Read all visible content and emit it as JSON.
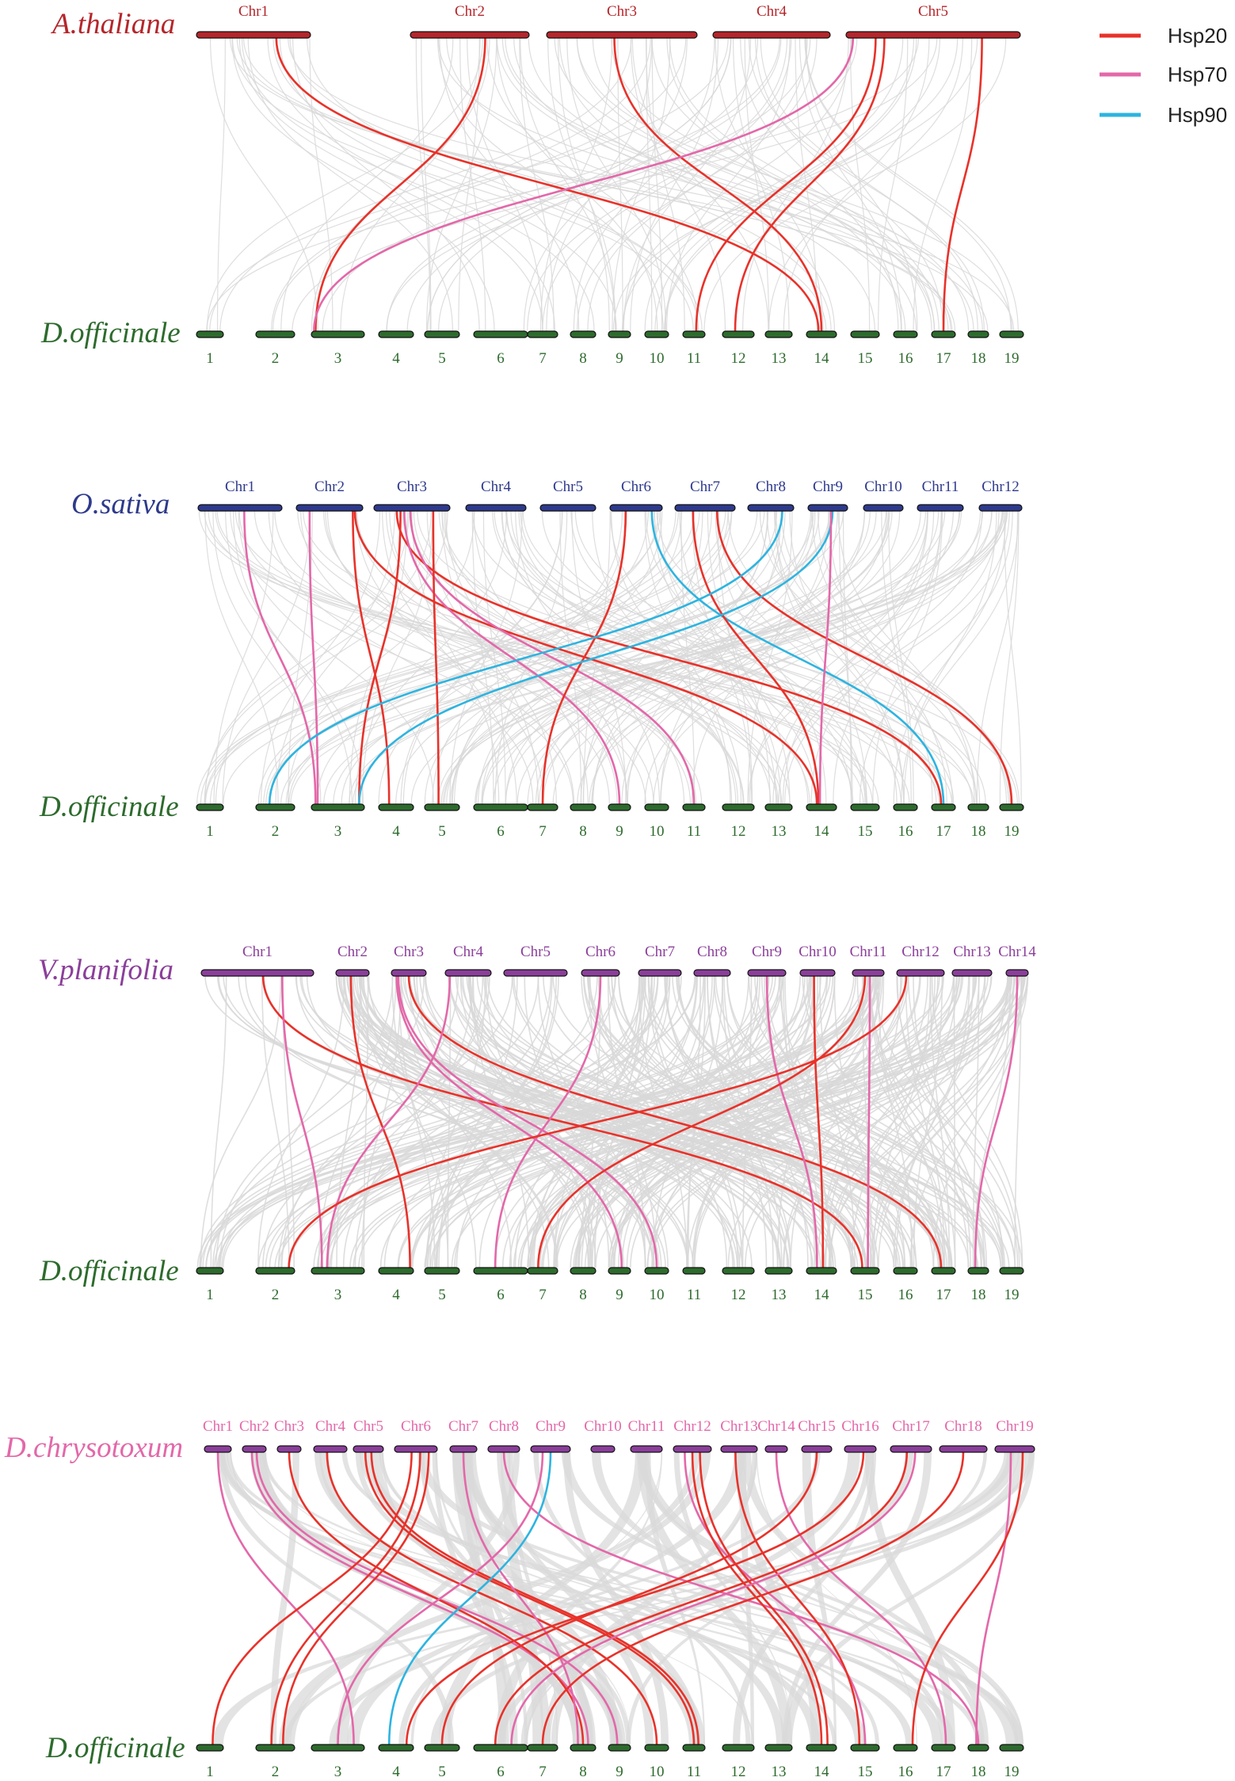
{
  "colors": {
    "Hsp20": "#e8322a",
    "Hsp70": "#e368a9",
    "Hsp90": "#2db4e0",
    "background_links": "#d8d8d8",
    "dof_bar": "#2d6b2d",
    "dof_text": "#2d6b2d"
  },
  "legend": [
    {
      "name": "Hsp20",
      "color_key": "Hsp20"
    },
    {
      "name": "Hsp70",
      "color_key": "Hsp70"
    },
    {
      "name": "Hsp90",
      "color_key": "Hsp90"
    }
  ],
  "panels": [
    {
      "id": "athaliana",
      "top_species": "A.thaliana",
      "bottom_species": "D.officinale",
      "top_color": "#b5262b",
      "top_bar_color": "#b5262b",
      "top_chromosomes": [
        "Chr1",
        "Chr2",
        "Chr3",
        "Chr4",
        "Chr5"
      ],
      "bottom_chromosomes": [
        "1",
        "2",
        "3",
        "4",
        "5",
        "6",
        "7",
        "8",
        "9",
        "10",
        "11",
        "12",
        "13",
        "14",
        "15",
        "16",
        "17",
        "18",
        "19"
      ],
      "gray_density": "light",
      "links": [
        {
          "type": "Hsp20",
          "from": 0,
          "fpos": 0.7,
          "to": 13,
          "tpos": 0.4
        },
        {
          "type": "Hsp20",
          "from": 1,
          "fpos": 0.63,
          "to": 2,
          "tpos": 0.08
        },
        {
          "type": "Hsp20",
          "from": 2,
          "fpos": 0.45,
          "to": 13,
          "tpos": 0.5
        },
        {
          "type": "Hsp20",
          "from": 4,
          "fpos": 0.17,
          "to": 10,
          "tpos": 0.6
        },
        {
          "type": "Hsp20",
          "from": 4,
          "fpos": 0.22,
          "to": 11,
          "tpos": 0.4
        },
        {
          "type": "Hsp20",
          "from": 4,
          "fpos": 0.78,
          "to": 16,
          "tpos": 0.5
        },
        {
          "type": "Hsp70",
          "from": 4,
          "fpos": 0.04,
          "to": 2,
          "tpos": 0.05
        }
      ]
    },
    {
      "id": "osativa",
      "top_species": "O.sativa",
      "bottom_species": "D.officinale",
      "top_color": "#2e3a8c",
      "top_bar_color": "#2e3a8c",
      "top_chromosomes": [
        "Chr1",
        "Chr2",
        "Chr3",
        "Chr4",
        "Chr5",
        "Chr6",
        "Chr7",
        "Chr8",
        "Chr9",
        "Chr10",
        "Chr11",
        "Chr12"
      ],
      "bottom_chromosomes": [
        "1",
        "2",
        "3",
        "4",
        "5",
        "6",
        "7",
        "8",
        "9",
        "10",
        "11",
        "12",
        "13",
        "14",
        "15",
        "16",
        "17",
        "18",
        "19"
      ],
      "gray_density": "medium",
      "links": [
        {
          "type": "Hsp70",
          "from": 0,
          "fpos": 0.55,
          "to": 2,
          "tpos": 0.08
        },
        {
          "type": "Hsp70",
          "from": 1,
          "fpos": 0.2,
          "to": 2,
          "tpos": 0.12
        },
        {
          "type": "Hsp20",
          "from": 1,
          "fpos": 0.85,
          "to": 3,
          "tpos": 0.3
        },
        {
          "type": "Hsp20",
          "from": 1,
          "fpos": 0.88,
          "to": 13,
          "tpos": 0.35
        },
        {
          "type": "Hsp20",
          "from": 2,
          "fpos": 0.35,
          "to": 2,
          "tpos": 0.9
        },
        {
          "type": "Hsp20",
          "from": 2,
          "fpos": 0.3,
          "to": 16,
          "tpos": 0.4
        },
        {
          "type": "Hsp70",
          "from": 2,
          "fpos": 0.4,
          "to": 8,
          "tpos": 0.5
        },
        {
          "type": "Hsp70",
          "from": 2,
          "fpos": 0.48,
          "to": 10,
          "tpos": 0.5
        },
        {
          "type": "Hsp20",
          "from": 2,
          "fpos": 0.78,
          "to": 4,
          "tpos": 0.4
        },
        {
          "type": "Hsp20",
          "from": 5,
          "fpos": 0.3,
          "to": 6,
          "tpos": 0.5
        },
        {
          "type": "Hsp90",
          "from": 5,
          "fpos": 0.8,
          "to": 16,
          "tpos": 0.5
        },
        {
          "type": "Hsp20",
          "from": 6,
          "fpos": 0.3,
          "to": 13,
          "tpos": 0.4
        },
        {
          "type": "Hsp20",
          "from": 6,
          "fpos": 0.7,
          "to": 18,
          "tpos": 0.5
        },
        {
          "type": "Hsp90",
          "from": 7,
          "fpos": 0.75,
          "to": 1,
          "tpos": 0.35
        },
        {
          "type": "Hsp90",
          "from": 8,
          "fpos": 0.62,
          "to": 2,
          "tpos": 0.9
        },
        {
          "type": "Hsp70",
          "from": 8,
          "fpos": 0.58,
          "to": 13,
          "tpos": 0.45
        }
      ]
    },
    {
      "id": "vplanifolia",
      "top_species": "V.planifolia",
      "bottom_species": "D.officinale",
      "top_color": "#8b3f9a",
      "top_bar_color": "#8b3f9a",
      "top_chromosomes": [
        "Chr1",
        "Chr2",
        "Chr3",
        "Chr4",
        "Chr5",
        "Chr6",
        "Chr7",
        "Chr8",
        "Chr9",
        "Chr10",
        "Chr11",
        "Chr12",
        "Chr13",
        "Chr14"
      ],
      "bottom_chromosomes": [
        "1",
        "2",
        "3",
        "4",
        "5",
        "6",
        "7",
        "8",
        "9",
        "10",
        "11",
        "12",
        "13",
        "14",
        "15",
        "16",
        "17",
        "18",
        "19"
      ],
      "gray_density": "heavy",
      "links": [
        {
          "type": "Hsp20",
          "from": 0,
          "fpos": 0.55,
          "to": 14,
          "tpos": 0.4
        },
        {
          "type": "Hsp70",
          "from": 0,
          "fpos": 0.72,
          "to": 2,
          "tpos": 0.2
        },
        {
          "type": "Hsp20",
          "from": 1,
          "fpos": 0.45,
          "to": 3,
          "tpos": 0.9
        },
        {
          "type": "Hsp70",
          "from": 2,
          "fpos": 0.15,
          "to": 8,
          "tpos": 0.6
        },
        {
          "type": "Hsp70",
          "from": 2,
          "fpos": 0.2,
          "to": 9,
          "tpos": 0.5
        },
        {
          "type": "Hsp20",
          "from": 2,
          "fpos": 0.5,
          "to": 16,
          "tpos": 0.4
        },
        {
          "type": "Hsp70",
          "from": 3,
          "fpos": 0.1,
          "to": 2,
          "tpos": 0.3
        },
        {
          "type": "Hsp70",
          "from": 5,
          "fpos": 0.5,
          "to": 5,
          "tpos": 0.4
        },
        {
          "type": "Hsp70",
          "from": 8,
          "fpos": 0.5,
          "to": 13,
          "tpos": 0.35
        },
        {
          "type": "Hsp20",
          "from": 9,
          "fpos": 0.4,
          "to": 13,
          "tpos": 0.55
        },
        {
          "type": "Hsp20",
          "from": 10,
          "fpos": 0.4,
          "to": 6,
          "tpos": 0.35
        },
        {
          "type": "Hsp70",
          "from": 10,
          "fpos": 0.55,
          "to": 14,
          "tpos": 0.6
        },
        {
          "type": "Hsp20",
          "from": 11,
          "fpos": 0.2,
          "to": 1,
          "tpos": 0.85
        },
        {
          "type": "Hsp70",
          "from": 13,
          "fpos": 0.5,
          "to": 17,
          "tpos": 0.35
        }
      ]
    },
    {
      "id": "dchrysotoxum",
      "top_species": "D.chrysotoxum",
      "bottom_species": "D.officinale",
      "top_color": "#e368a9",
      "top_bar_color": "#8b3f9a",
      "top_chromosomes": [
        "Chr1",
        "Chr2",
        "Chr3",
        "Chr4",
        "Chr5",
        "Chr6",
        "Chr7",
        "Chr8",
        "Chr9",
        "Chr10",
        "Chr11",
        "Chr12",
        "Chr13",
        "Chr14",
        "Chr15",
        "Chr16",
        "Chr17",
        "Chr18",
        "Chr19"
      ],
      "bottom_chromosomes": [
        "1",
        "2",
        "3",
        "4",
        "5",
        "6",
        "7",
        "8",
        "9",
        "10",
        "11",
        "12",
        "13",
        "14",
        "15",
        "16",
        "17",
        "18",
        "19"
      ],
      "gray_density": "bands",
      "links": [
        {
          "type": "Hsp70",
          "from": 0,
          "fpos": 0.5,
          "to": 2,
          "tpos": 0.8
        },
        {
          "type": "Hsp70",
          "from": 1,
          "fpos": 0.4,
          "to": 7,
          "tpos": 0.7
        },
        {
          "type": "Hsp70",
          "from": 1,
          "fpos": 0.6,
          "to": 8,
          "tpos": 0.4
        },
        {
          "type": "Hsp20",
          "from": 2,
          "fpos": 0.5,
          "to": 7,
          "tpos": 0.5
        },
        {
          "type": "Hsp20",
          "from": 3,
          "fpos": 0.4,
          "to": 9,
          "tpos": 0.5
        },
        {
          "type": "Hsp20",
          "from": 4,
          "fpos": 0.4,
          "to": 10,
          "tpos": 0.5
        },
        {
          "type": "Hsp20",
          "from": 4,
          "fpos": 0.6,
          "to": 10,
          "tpos": 0.7
        },
        {
          "type": "Hsp20",
          "from": 5,
          "fpos": 0.4,
          "to": 0,
          "tpos": 0.6
        },
        {
          "type": "Hsp20",
          "from": 5,
          "fpos": 0.6,
          "to": 1,
          "tpos": 0.4
        },
        {
          "type": "Hsp20",
          "from": 5,
          "fpos": 0.8,
          "to": 1,
          "tpos": 0.7
        },
        {
          "type": "Hsp70",
          "from": 6,
          "fpos": 0.5,
          "to": 7,
          "tpos": 0.3
        },
        {
          "type": "Hsp70",
          "from": 7,
          "fpos": 0.5,
          "to": 17,
          "tpos": 0.5
        },
        {
          "type": "Hsp90",
          "from": 8,
          "fpos": 0.5,
          "to": 3,
          "tpos": 0.3
        },
        {
          "type": "Hsp70",
          "from": 8,
          "fpos": 0.3,
          "to": 2,
          "tpos": 0.5
        },
        {
          "type": "Hsp70",
          "from": 11,
          "fpos": 0.3,
          "to": 14,
          "tpos": 0.5
        },
        {
          "type": "Hsp20",
          "from": 11,
          "fpos": 0.5,
          "to": 13,
          "tpos": 0.5
        },
        {
          "type": "Hsp20",
          "from": 11,
          "fpos": 0.7,
          "to": 13,
          "tpos": 0.7
        },
        {
          "type": "Hsp20",
          "from": 12,
          "fpos": 0.4,
          "to": 14,
          "tpos": 0.3
        },
        {
          "type": "Hsp70",
          "from": 13,
          "fpos": 0.5,
          "to": 16,
          "tpos": 0.6
        },
        {
          "type": "Hsp20",
          "from": 14,
          "fpos": 0.5,
          "to": 4,
          "tpos": 0.5
        },
        {
          "type": "Hsp20",
          "from": 15,
          "fpos": 0.6,
          "to": 3,
          "tpos": 0.8
        },
        {
          "type": "Hsp20",
          "from": 16,
          "fpos": 0.4,
          "to": 5,
          "tpos": 0.4
        },
        {
          "type": "Hsp70",
          "from": 16,
          "fpos": 0.6,
          "to": 5,
          "tpos": 0.7
        },
        {
          "type": "Hsp20",
          "from": 17,
          "fpos": 0.5,
          "to": 6,
          "tpos": 0.5
        },
        {
          "type": "Hsp70",
          "from": 18,
          "fpos": 0.4,
          "to": 17,
          "tpos": 0.4
        },
        {
          "type": "Hsp20",
          "from": 18,
          "fpos": 0.7,
          "to": 15,
          "tpos": 0.8
        }
      ]
    }
  ]
}
